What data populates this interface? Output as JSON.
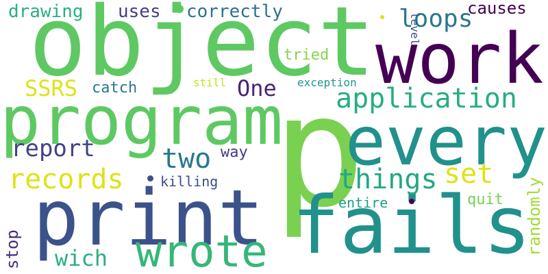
{
  "words": {
    "object": {
      "text": "object",
      "color": "#5ec962"
    },
    "p": {
      "text": "p",
      "color": "#7ad151"
    },
    "work": {
      "text": "work",
      "color": "#440154"
    },
    "program": {
      "text": "program",
      "color": "#5ec962"
    },
    "every": {
      "text": "every",
      "color": "#21918c"
    },
    "print": {
      "text": "print",
      "color": "#3b528b"
    },
    "fails": {
      "text": "fails",
      "color": "#21918c"
    },
    "wrote": {
      "text": "wrote",
      "color": "#35b779"
    },
    "application": {
      "text": "application",
      "color": "#27ad81"
    },
    "records": {
      "text": "records",
      "color": "#dde318"
    },
    "things": {
      "text": "things",
      "color": "#22a884"
    },
    "loops": {
      "text": "loops",
      "color": "#2a788e"
    },
    "report": {
      "text": "report",
      "color": "#404387"
    },
    "two": {
      "text": "two",
      "color": "#2a788e"
    },
    "set": {
      "text": "set",
      "color": "#dde318"
    },
    "SSRS": {
      "text": "SSRS",
      "color": "#dde318"
    },
    "One": {
      "text": "One",
      "color": "#482475"
    },
    "drawing": {
      "text": "drawing",
      "color": "#29af7f"
    },
    "uses": {
      "text": "uses",
      "color": "#433e85"
    },
    "correctly": {
      "text": "correctly",
      "color": "#2c728e"
    },
    "causes": {
      "text": "causes",
      "color": "#440154"
    },
    "catch": {
      "text": "catch",
      "color": "#2a788e"
    },
    "way": {
      "text": "way",
      "color": "#443983"
    },
    "killing": {
      "text": "killing",
      "color": "#3e4a89"
    },
    "wich": {
      "text": "wich",
      "color": "#2ab07f"
    },
    "stop": {
      "text": "stop",
      "color": "#472d7b"
    },
    "quit": {
      "text": "quit",
      "color": "#75d054"
    },
    "randomly": {
      "text": "randomly",
      "color": "#a2da37"
    },
    "entire": {
      "text": "entire",
      "color": "#1f9e89"
    },
    "tried": {
      "text": "tried",
      "color": "#86d549"
    },
    "exception": {
      "text": "exception",
      "color": "#1f968b"
    },
    "still": {
      "text": "still",
      "color": "#c8e020"
    },
    "level": {
      "text": "level",
      "color": "#3b528b"
    }
  }
}
